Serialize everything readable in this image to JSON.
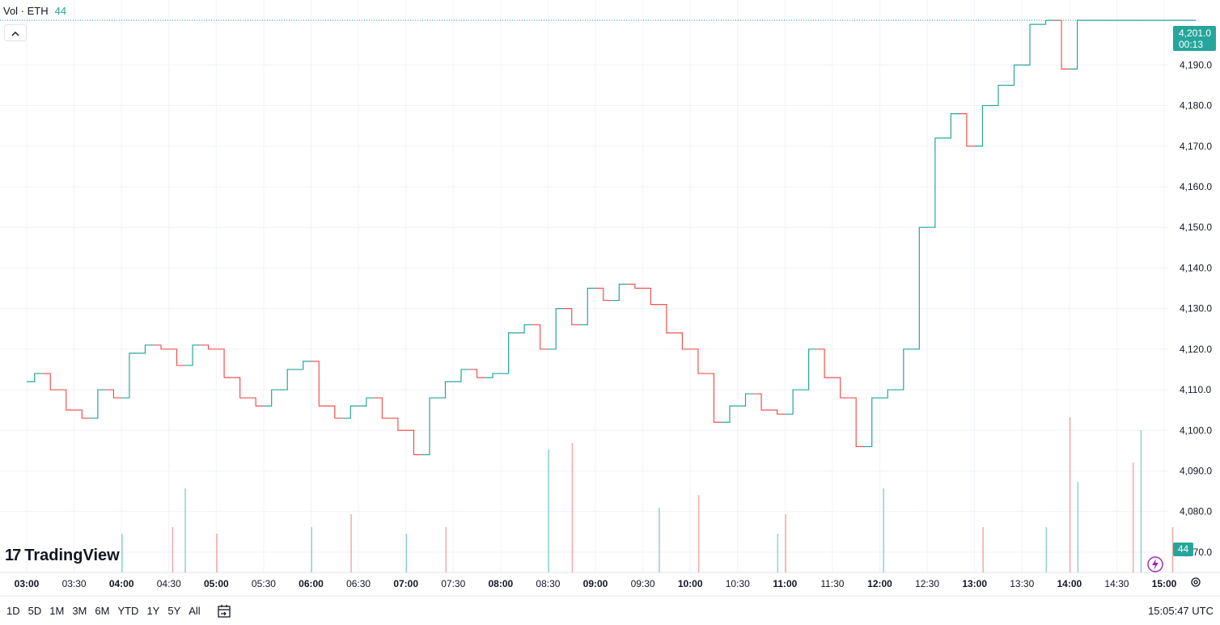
{
  "legend": {
    "label": "Vol · ETH",
    "value": "44"
  },
  "logo": {
    "mark": "17",
    "name": "TradingView"
  },
  "last_price": {
    "value": "4,201.0",
    "countdown": "00:13"
  },
  "volume_tag": "44",
  "time_ranges": [
    "1D",
    "5D",
    "1M",
    "3M",
    "6M",
    "YTD",
    "1Y",
    "5Y",
    "All"
  ],
  "clock": "15:05:47 UTC",
  "colors": {
    "up": "#26a69a",
    "down": "#ef5350",
    "grid": "#f0f3fa",
    "text": "#131722"
  },
  "icons": [
    "chevron-up-icon",
    "calendar-goto-icon",
    "gear-icon",
    "lightning-icon"
  ],
  "chart_data": {
    "type": "line",
    "title": "",
    "xlabel": "",
    "ylabel": "",
    "y_axis_position": "right",
    "ylim": [
      4065,
      4206
    ],
    "y_ticks": [
      4070,
      4080,
      4090,
      4100,
      4110,
      4120,
      4130,
      4140,
      4150,
      4160,
      4170,
      4180,
      4190
    ],
    "y_tick_labels": [
      "4,070.0",
      "4,080.0",
      "4,090.0",
      "4,100.0",
      "4,110.0",
      "4,120.0",
      "4,130.0",
      "4,140.0",
      "4,150.0",
      "4,160.0",
      "4,170.0",
      "4,180.0",
      "4,190.0"
    ],
    "x_ticks": [
      "03:00",
      "03:30",
      "04:00",
      "04:30",
      "05:00",
      "05:30",
      "06:00",
      "06:30",
      "07:00",
      "07:30",
      "08:00",
      "08:30",
      "09:00",
      "09:30",
      "10:00",
      "10:30",
      "11:00",
      "11:30",
      "12:00",
      "12:30",
      "13:00",
      "13:30",
      "14:00",
      "14:30",
      "15:00"
    ],
    "x_tick_bold": [
      "03:00",
      "04:00",
      "05:00",
      "06:00",
      "07:00",
      "08:00",
      "09:00",
      "10:00",
      "11:00",
      "12:00",
      "13:00",
      "14:00",
      "15:00"
    ],
    "x_range_minutes": [
      0,
      744
    ],
    "series": [
      {
        "name": "",
        "t_minutes": [
          0,
          10,
          20,
          30,
          40,
          50,
          60,
          70,
          80,
          90,
          100,
          110,
          120,
          130,
          140,
          150,
          160,
          170,
          180,
          190,
          200,
          210,
          220,
          230,
          240,
          250,
          260,
          270,
          280,
          290,
          300,
          310,
          320,
          330,
          340,
          350,
          360,
          370,
          380,
          390,
          400,
          410,
          420,
          430,
          440,
          450,
          460,
          470,
          480,
          490,
          500,
          510,
          520,
          530,
          540,
          550,
          560,
          570,
          580,
          590,
          600,
          610,
          620,
          630,
          640,
          650,
          660,
          670,
          680,
          690,
          700,
          710,
          720,
          730,
          740
        ],
        "close": [
          4112,
          4114,
          4110,
          4105,
          4103,
          4110,
          4108,
          4119,
          4121,
          4120,
          4116,
          4121,
          4120,
          4113,
          4108,
          4106,
          4110,
          4115,
          4117,
          4106,
          4103,
          4106,
          4108,
          4103,
          4100,
          4094,
          4108,
          4112,
          4115,
          4113,
          4114,
          4124,
          4126,
          4120,
          4130,
          4126,
          4135,
          4132,
          4136,
          4135,
          4131,
          4124,
          4120,
          4114,
          4102,
          4106,
          4109,
          4105,
          4104,
          4110,
          4120,
          4113,
          4108,
          4096,
          4108,
          4110,
          4120,
          4150,
          4172,
          4178,
          4170,
          4180,
          4185,
          4190,
          4200,
          4201,
          4189,
          4201,
          4201,
          4201,
          4201,
          4201,
          4201,
          4201,
          4201
        ]
      },
      {
        "name": "Volume",
        "t_minutes": [
          60,
          92,
          100,
          120,
          180,
          205,
          240,
          265,
          330,
          345,
          400,
          425,
          475,
          480,
          542,
          605,
          645,
          660,
          665,
          700,
          705,
          725
        ],
        "values": [
          12,
          14,
          26,
          12,
          14,
          18,
          12,
          14,
          38,
          40,
          20,
          24,
          12,
          18,
          26,
          14,
          14,
          48,
          28,
          34,
          44,
          14
        ]
      }
    ]
  }
}
